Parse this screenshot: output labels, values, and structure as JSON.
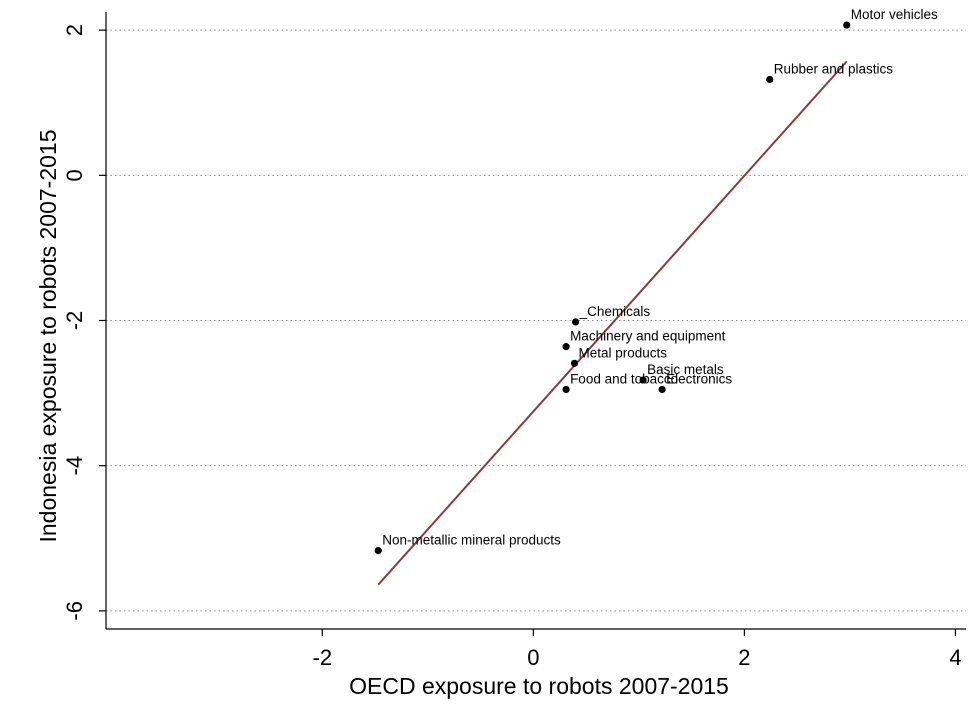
{
  "chart_data": {
    "type": "scatter",
    "title": "",
    "xlabel": "OECD exposure to robots 2007-2015",
    "ylabel": "Indonesia exposure to robots 2007-2015",
    "xlim": [
      -4.05,
      4.1
    ],
    "ylim": [
      -6.25,
      2.25
    ],
    "xticks": [
      -2,
      0,
      2,
      4
    ],
    "yticks": [
      -6,
      -4,
      -2,
      0,
      2
    ],
    "grid": "horizontal dotted",
    "points": [
      {
        "label": "Motor vehicles",
        "x": 2.97,
        "y": 2.07
      },
      {
        "label": "Rubber and plastics",
        "x": 2.24,
        "y": 1.32
      },
      {
        "label": "_Chemicals",
        "x": 0.4,
        "y": -2.02
      },
      {
        "label": "Machinery and equipment",
        "x": 0.31,
        "y": -2.36
      },
      {
        "label": "Metal products",
        "x": 0.39,
        "y": -2.59
      },
      {
        "label": "Basic metals",
        "x": 1.04,
        "y": -2.82
      },
      {
        "label": "Food and tobacco",
        "x": 0.31,
        "y": -2.95
      },
      {
        "label": "Electronics",
        "x": 1.22,
        "y": -2.95
      },
      {
        "label": "Non-metallic mineral products",
        "x": -1.47,
        "y": -5.17
      }
    ],
    "fit_line": {
      "x": [
        -1.47,
        2.97
      ],
      "y": [
        -5.64,
        1.57
      ],
      "color": "#8b3a3a"
    },
    "colors": {
      "points": "#000000",
      "grid": "#888888",
      "axis": "#000000"
    }
  }
}
